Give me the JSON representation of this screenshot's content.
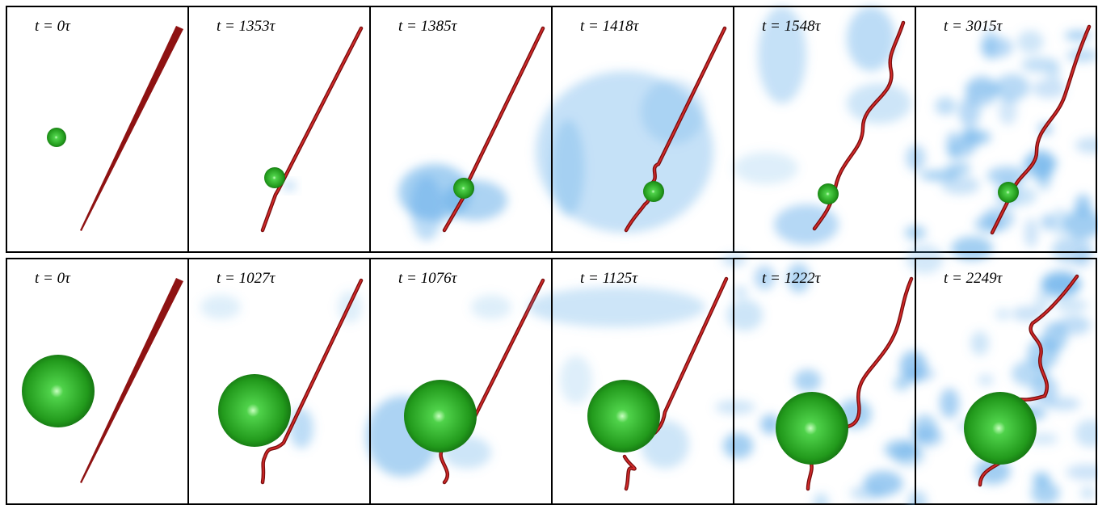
{
  "rows": [
    {
      "panels": [
        {
          "label": "t = 0τ"
        },
        {
          "label": "t = 1353τ"
        },
        {
          "label": "t = 1385τ"
        },
        {
          "label": "t = 1418τ"
        },
        {
          "label": "t = 1548τ"
        },
        {
          "label": "t = 3015τ"
        }
      ]
    },
    {
      "panels": [
        {
          "label": "t = 0τ"
        },
        {
          "label": "t = 1027τ"
        },
        {
          "label": "t = 1076τ"
        },
        {
          "label": "t = 1125τ"
        },
        {
          "label": "t = 1222τ"
        },
        {
          "label": "t = 2249τ"
        }
      ]
    }
  ]
}
